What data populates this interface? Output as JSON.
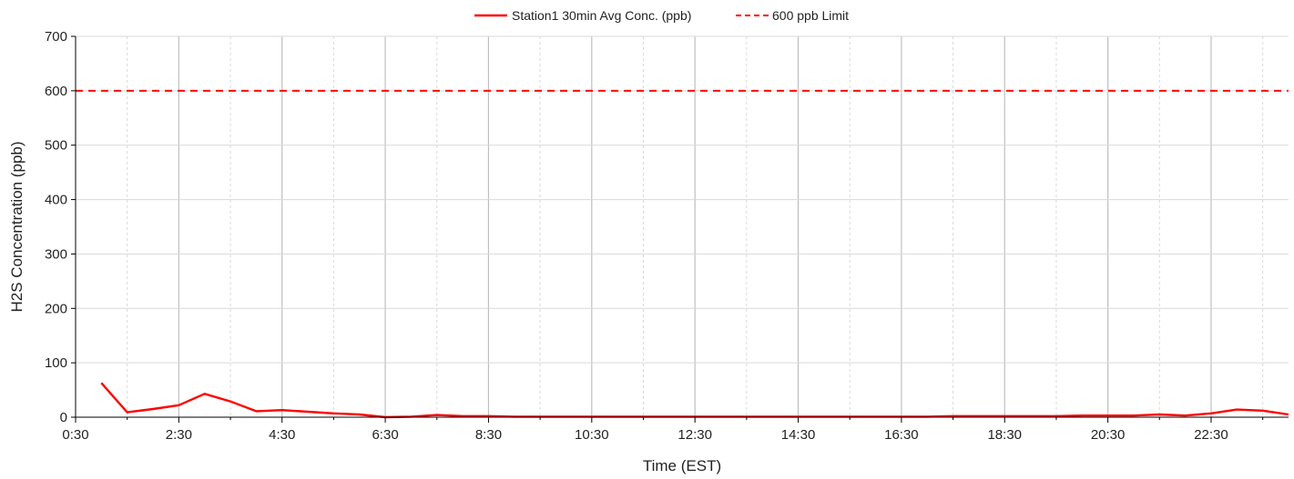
{
  "chart_data": {
    "type": "line",
    "xlabel": "Time (EST)",
    "ylabel": "H2S Concentration (ppb)",
    "x_tick_labels": [
      "0:30",
      "2:30",
      "4:30",
      "6:30",
      "8:30",
      "10:30",
      "12:30",
      "14:30",
      "16:30",
      "18:30",
      "20:30",
      "22:30"
    ],
    "xlim": [
      "0:30",
      "24:00"
    ],
    "ylim": [
      0,
      700
    ],
    "y_ticks": [
      0,
      100,
      200,
      300,
      400,
      500,
      600,
      700
    ],
    "grid": {
      "major_x": true,
      "minor_x": true,
      "major_y": true
    },
    "legend_position": "top-center",
    "series": [
      {
        "name": "Station1 30min Avg Conc.  (ppb)",
        "style": "solid",
        "color": "#ff0000",
        "x": [
          "1:00",
          "1:30",
          "2:00",
          "2:30",
          "3:00",
          "3:30",
          "4:00",
          "4:30",
          "5:00",
          "5:30",
          "6:00",
          "6:30",
          "7:00",
          "7:30",
          "8:00",
          "8:30",
          "9:00",
          "9:30",
          "10:00",
          "10:30",
          "11:00",
          "11:30",
          "12:00",
          "12:30",
          "13:00",
          "13:30",
          "14:00",
          "14:30",
          "15:00",
          "15:30",
          "16:00",
          "16:30",
          "17:00",
          "17:30",
          "18:00",
          "18:30",
          "19:00",
          "19:30",
          "20:00",
          "20:30",
          "21:00",
          "21:30",
          "22:00",
          "22:30",
          "23:00",
          "23:30",
          "24:00"
        ],
        "values": [
          63,
          9,
          15,
          22,
          43,
          29,
          11,
          13,
          10,
          7,
          5,
          0,
          1,
          4,
          2,
          2,
          1,
          1,
          1,
          1,
          1,
          1,
          1,
          1,
          1,
          1,
          1,
          1,
          1,
          1,
          1,
          1,
          1,
          2,
          2,
          2,
          2,
          2,
          3,
          3,
          3,
          5,
          3,
          7,
          14,
          12,
          5
        ]
      },
      {
        "name": "600 ppb Limit",
        "style": "dashed",
        "color": "#ff0000",
        "constant": 600
      }
    ]
  }
}
